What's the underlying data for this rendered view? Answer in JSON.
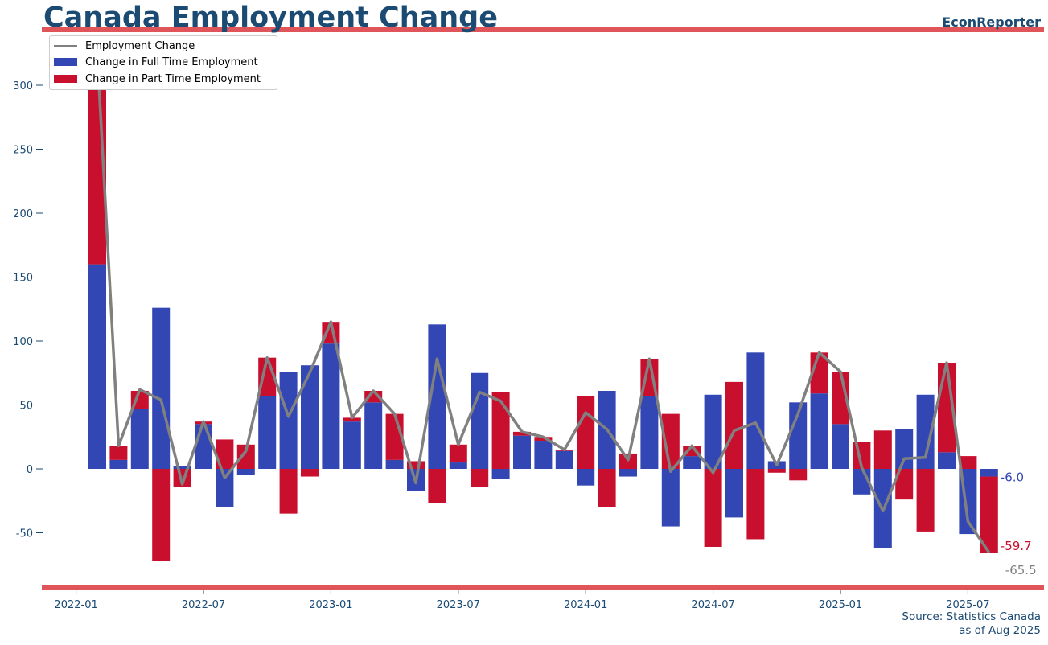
{
  "header": {
    "title": "Canada Employment Change",
    "brand": "EconReporter"
  },
  "footer": {
    "source_line1": "Source: Statistics Canada",
    "source_line2": "as of Aug 2025"
  },
  "colors": {
    "full_time": "#3347b4",
    "part_time": "#c8102e",
    "total_line": "#808080",
    "rule": "#e0555a",
    "text": "#1b4a72"
  },
  "legend": {
    "total": "Employment Change",
    "full_time": "Change in Full Time Employment",
    "part_time": "Change in Part Time Employment"
  },
  "chart_data": {
    "type": "bar",
    "title": "Canada Employment Change",
    "xlabel": "",
    "ylabel": "",
    "ylim": [
      -95,
      340
    ],
    "grid": true,
    "legend_position": "top-left",
    "yticks": [
      -50,
      0,
      50,
      100,
      150,
      200,
      250,
      300
    ],
    "xticks": [
      "2022-01",
      "2022-07",
      "2023-01",
      "2023-07",
      "2024-01",
      "2024-07",
      "2025-01",
      "2025-07"
    ],
    "categories": [
      "2022-02",
      "2022-03",
      "2022-04",
      "2022-05",
      "2022-06",
      "2022-07",
      "2022-08",
      "2022-09",
      "2022-10",
      "2022-11",
      "2022-12",
      "2023-01",
      "2023-02",
      "2023-03",
      "2023-04",
      "2023-05",
      "2023-06",
      "2023-07",
      "2023-08",
      "2023-09",
      "2023-10",
      "2023-11",
      "2023-12",
      "2024-01",
      "2024-02",
      "2024-03",
      "2024-04",
      "2024-05",
      "2024-06",
      "2024-07",
      "2024-08",
      "2024-09",
      "2024-10",
      "2024-11",
      "2024-12",
      "2025-01",
      "2025-02",
      "2025-03",
      "2025-04",
      "2025-05",
      "2025-06",
      "2025-07",
      "2025-08"
    ],
    "series": [
      {
        "name": "Change in Full Time Employment",
        "stack": true,
        "values": [
          160,
          7,
          47,
          126,
          2,
          35,
          -30,
          -5,
          57,
          76,
          81,
          98,
          37,
          52,
          7,
          -17,
          113,
          5,
          75,
          -8,
          26,
          22,
          14,
          -13,
          61,
          -6,
          57,
          -45,
          10,
          58,
          -38,
          91,
          6,
          52,
          59,
          35,
          -20,
          -62,
          31,
          58,
          13,
          -51,
          -6.0
        ]
      },
      {
        "name": "Change in Part Time Employment",
        "stack": true,
        "values": [
          164,
          11,
          14,
          -72,
          -14,
          2,
          23,
          19,
          30,
          -35,
          -6,
          17,
          3,
          9,
          36,
          6,
          -27,
          14,
          -14,
          60,
          3,
          3,
          1,
          57,
          -30,
          12,
          29,
          43,
          8,
          -61,
          68,
          -55,
          -3,
          -9,
          32,
          41,
          21,
          30,
          -24,
          -49,
          70,
          10,
          -59.7
        ]
      },
      {
        "name": "Employment Change",
        "type": "line",
        "values": [
          324,
          18,
          62,
          54,
          -12,
          37,
          -7,
          14,
          87,
          41,
          75,
          115,
          40,
          61,
          43,
          -11,
          86,
          19,
          60,
          53,
          29,
          25,
          15,
          44,
          31,
          7,
          86,
          -2,
          18,
          -3,
          30,
          36,
          3,
          43,
          91,
          76,
          1,
          -33,
          8,
          9,
          83,
          -41,
          -65.5
        ]
      }
    ],
    "end_labels": {
      "full_time": "-6.0",
      "part_time": "-59.7",
      "total": "-65.5"
    }
  }
}
